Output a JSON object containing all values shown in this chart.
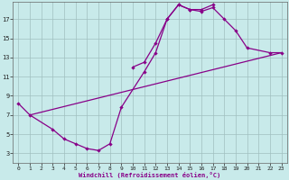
{
  "bg_color": "#c8eaea",
  "grid_color": "#a0c0c0",
  "line_color": "#880088",
  "xlabel": "Windchill (Refroidissement éolien,°C)",
  "xlim": [
    -0.5,
    23.5
  ],
  "ylim": [
    2.0,
    18.8
  ],
  "xticks": [
    0,
    1,
    2,
    3,
    4,
    5,
    6,
    7,
    8,
    9,
    10,
    11,
    12,
    13,
    14,
    15,
    16,
    17,
    18,
    19,
    20,
    21,
    22,
    23
  ],
  "yticks": [
    3,
    5,
    7,
    9,
    11,
    13,
    15,
    17
  ],
  "curve1_x": [
    0,
    1,
    3,
    4,
    5,
    6,
    7,
    8,
    9,
    11,
    12,
    13,
    14,
    15,
    16,
    17
  ],
  "curve1_y": [
    8.2,
    7.0,
    5.5,
    4.5,
    4.0,
    3.5,
    3.3,
    4.0,
    7.8,
    11.5,
    13.5,
    17.0,
    18.5,
    18.0,
    18.0,
    18.5
  ],
  "curve2_x": [
    10,
    11,
    12,
    13,
    14,
    15,
    16,
    17,
    18,
    19,
    20,
    22,
    23
  ],
  "curve2_y": [
    12.0,
    12.5,
    14.5,
    17.0,
    18.5,
    18.0,
    17.8,
    18.2,
    17.0,
    15.8,
    14.0,
    13.5,
    13.5
  ],
  "curve3_x": [
    1,
    23
  ],
  "curve3_y": [
    7.0,
    13.5
  ]
}
